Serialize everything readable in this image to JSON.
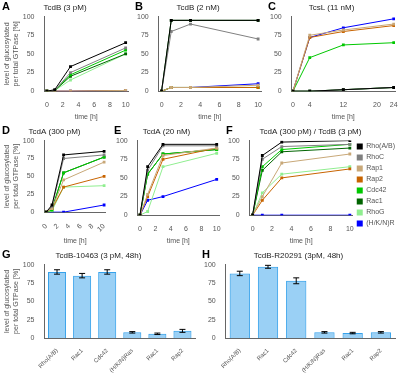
{
  "chart_data": [
    {
      "type": "line",
      "title": "TcdB (3 pM)",
      "annotations": [
        "A"
      ],
      "xlabel": "time [h]",
      "ylabel": "level of glucosylated\nper total GTPase [%]",
      "x": [
        0,
        1,
        3,
        10
      ],
      "xlim": [
        -0.3,
        10.3
      ],
      "xticks": [
        0,
        2,
        4,
        6,
        8,
        10
      ],
      "ylim": [
        0,
        100
      ],
      "yticks": [
        0,
        25,
        50,
        75,
        100
      ],
      "grid": false,
      "marker": "square",
      "series": [
        {
          "name": "Rho(A/B)",
          "color": "#000000",
          "values": [
            0,
            2,
            33,
            65
          ]
        },
        {
          "name": "RhoC",
          "color": "#808080",
          "values": [
            0,
            1,
            25,
            58
          ]
        },
        {
          "name": "Rap1",
          "color": "#c8a878",
          "values": [
            0,
            0,
            0,
            1
          ]
        },
        {
          "name": "Rap2",
          "color": "#c86400",
          "values": [
            0,
            0,
            0,
            1
          ]
        },
        {
          "name": "Cdc42",
          "color": "#00c800",
          "values": [
            0,
            1,
            22,
            55
          ]
        },
        {
          "name": "Rac1",
          "color": "#006400",
          "values": [
            0,
            1,
            20,
            50
          ]
        },
        {
          "name": "RhoG",
          "color": "#90ee90",
          "values": [
            0,
            1,
            15,
            50
          ]
        },
        {
          "name": "(H/K/N)Ras",
          "color": "#0000ff",
          "values": [
            0,
            0,
            0,
            1
          ]
        }
      ]
    },
    {
      "type": "line",
      "title": "TcdB (2 nM)",
      "annotations": [
        "B"
      ],
      "xlabel": "time [h]",
      "x": [
        0,
        1,
        3,
        10
      ],
      "xlim": [
        -0.3,
        10.3
      ],
      "xticks": [
        0,
        2,
        4,
        6,
        8,
        10
      ],
      "ylim": [
        0,
        100
      ],
      "yticks": [
        0,
        25,
        50,
        75,
        100
      ],
      "grid": false,
      "marker": "square",
      "series": [
        {
          "name": "Rho(A/B)",
          "color": "#000000",
          "values": [
            0,
            95,
            95,
            95
          ]
        },
        {
          "name": "RhoC",
          "color": "#808080",
          "values": [
            0,
            80,
            90,
            70
          ]
        },
        {
          "name": "Rap1",
          "color": "#c8a878",
          "values": [
            0,
            5,
            5,
            8
          ]
        },
        {
          "name": "Rap2",
          "color": "#c86400",
          "values": [
            0,
            5,
            5,
            5
          ]
        },
        {
          "name": "Cdc42",
          "color": "#00c800",
          "values": [
            0,
            5,
            5,
            5
          ]
        },
        {
          "name": "Rac1",
          "color": "#006400",
          "values": [
            0,
            95,
            95,
            95
          ]
        },
        {
          "name": "RhoG",
          "color": "#90ee90",
          "values": [
            0,
            5,
            5,
            5
          ]
        },
        {
          "name": "(H/K/N)Ras",
          "color": "#0000ff",
          "values": [
            0,
            5,
            5,
            10
          ]
        }
      ]
    },
    {
      "type": "line",
      "title": "TcsL (11 nM)",
      "annotations": [
        "C"
      ],
      "xlabel": "time [h]",
      "x": [
        0,
        4,
        12,
        24
      ],
      "xlim": [
        -0.3,
        24.3
      ],
      "xticks": [
        0,
        4,
        12,
        20,
        24
      ],
      "ylim": [
        0,
        100
      ],
      "yticks": [
        0,
        25,
        50,
        75,
        100
      ],
      "grid": false,
      "marker": "square",
      "series": [
        {
          "name": "Rho(A/B)",
          "color": "#000000",
          "values": [
            0,
            0,
            2,
            5
          ]
        },
        {
          "name": "RhoC",
          "color": "#808080",
          "values": [
            0,
            0,
            2,
            5
          ]
        },
        {
          "name": "Rap1",
          "color": "#c8a878",
          "values": [
            0,
            75,
            82,
            90
          ]
        },
        {
          "name": "Rap2",
          "color": "#c86400",
          "values": [
            0,
            72,
            80,
            88
          ]
        },
        {
          "name": "Cdc42",
          "color": "#00c800",
          "values": [
            0,
            45,
            62,
            65
          ]
        },
        {
          "name": "Rac1",
          "color": "#006400",
          "values": [
            0,
            0,
            2,
            5
          ]
        },
        {
          "name": "RhoG",
          "color": "#90ee90",
          "values": [
            0,
            0,
            2,
            5
          ]
        },
        {
          "name": "(H/K/N)Ras",
          "color": "#0000ff",
          "values": [
            0,
            72,
            85,
            97
          ]
        }
      ]
    },
    {
      "type": "line",
      "title": "TcdA (300 pM)",
      "annotations": [
        "D"
      ],
      "xlabel": "time [h]",
      "ylabel": "level of glucosylated\nper total GTPase [%]",
      "x": [
        0,
        1,
        3,
        10
      ],
      "xlim": [
        -0.3,
        10.3
      ],
      "xticks": [
        0,
        2,
        4,
        6,
        8,
        10
      ],
      "ylim": [
        0,
        100
      ],
      "yticks": [
        0,
        25,
        50,
        75,
        100
      ],
      "grid": false,
      "marker": "square",
      "series": [
        {
          "name": "Rho(A/B)",
          "color": "#000000",
          "values": [
            0,
            10,
            80,
            85
          ]
        },
        {
          "name": "RhoC",
          "color": "#808080",
          "values": [
            0,
            8,
            75,
            80
          ]
        },
        {
          "name": "Rap1",
          "color": "#c8a878",
          "values": [
            0,
            5,
            45,
            70
          ]
        },
        {
          "name": "Rap2",
          "color": "#c86400",
          "values": [
            0,
            5,
            35,
            50
          ]
        },
        {
          "name": "Cdc42",
          "color": "#00c800",
          "values": [
            0,
            3,
            55,
            77
          ]
        },
        {
          "name": "Rac1",
          "color": "#006400",
          "values": [
            0,
            5,
            55,
            77
          ]
        },
        {
          "name": "RhoG",
          "color": "#90ee90",
          "values": [
            0,
            2,
            35,
            37
          ]
        },
        {
          "name": "(H/K/N)Ras",
          "color": "#0000ff",
          "values": [
            0,
            0,
            0,
            10
          ]
        }
      ]
    },
    {
      "type": "line",
      "title": "TcdA (20 nM)",
      "annotations": [
        "E"
      ],
      "xlabel": "time [h]",
      "x": [
        0,
        1,
        3,
        10
      ],
      "xlim": [
        -0.3,
        10.3
      ],
      "xticks": [
        0,
        2,
        4,
        6,
        8,
        10
      ],
      "ylim": [
        0,
        100
      ],
      "yticks": [
        0,
        25,
        50,
        75,
        100
      ],
      "grid": false,
      "marker": "square",
      "series": [
        {
          "name": "Rho(A/B)",
          "color": "#000000",
          "values": [
            0,
            65,
            95,
            95
          ]
        },
        {
          "name": "RhoC",
          "color": "#808080",
          "values": [
            0,
            60,
            93,
            93
          ]
        },
        {
          "name": "Rap1",
          "color": "#c8a878",
          "values": [
            0,
            28,
            80,
            90
          ]
        },
        {
          "name": "Rap2",
          "color": "#c86400",
          "values": [
            0,
            25,
            75,
            90
          ]
        },
        {
          "name": "Cdc42",
          "color": "#00c800",
          "values": [
            0,
            55,
            82,
            88
          ]
        },
        {
          "name": "Rac1",
          "color": "#006400",
          "values": [
            0,
            55,
            82,
            88
          ]
        },
        {
          "name": "RhoG",
          "color": "#90ee90",
          "values": [
            0,
            5,
            65,
            83
          ]
        },
        {
          "name": "(H/K/N)Ras",
          "color": "#0000ff",
          "values": [
            0,
            20,
            25,
            48
          ]
        }
      ]
    },
    {
      "type": "line",
      "title": "TcdA (300 pM) / TcdB (3 pM)",
      "annotations": [
        "F"
      ],
      "xlabel": "time [h]",
      "legend": "right",
      "x": [
        0,
        1,
        3,
        10
      ],
      "xlim": [
        -0.3,
        10.3
      ],
      "xticks": [
        0,
        2,
        4,
        6,
        8,
        10
      ],
      "ylim": [
        0,
        100
      ],
      "yticks": [
        0,
        25,
        50,
        75,
        100
      ],
      "grid": false,
      "marker": "square",
      "series": [
        {
          "name": "Rho(A/B)",
          "color": "#000000",
          "values": [
            0,
            80,
            98,
            100
          ]
        },
        {
          "name": "RhoC",
          "color": "#808080",
          "values": [
            0,
            75,
            92,
            95
          ]
        },
        {
          "name": "Rap1",
          "color": "#c8a878",
          "values": [
            0,
            25,
            70,
            82
          ]
        },
        {
          "name": "Rap2",
          "color": "#c86400",
          "values": [
            0,
            20,
            50,
            62
          ]
        },
        {
          "name": "Cdc42",
          "color": "#00c800",
          "values": [
            0,
            65,
            88,
            95
          ]
        },
        {
          "name": "Rac1",
          "color": "#006400",
          "values": [
            0,
            60,
            85,
            90
          ]
        },
        {
          "name": "RhoG",
          "color": "#90ee90",
          "values": [
            0,
            30,
            55,
            65
          ]
        },
        {
          "name": "(H/K/N)Ras",
          "color": "#0000ff",
          "values": [
            0,
            0,
            0,
            0
          ]
        }
      ]
    },
    {
      "type": "bar",
      "title": "TcdB-10463 (3 pM, 48h)",
      "annotations": [
        "G"
      ],
      "ylabel": "level of glucosylated\nper total GTPase [%]",
      "categories": [
        "Rho(A/B)",
        "Rac1",
        "Cdc42",
        "(H/K/N)Ras",
        "Rac1",
        "Rap2"
      ],
      "values": [
        90,
        85,
        90,
        8,
        6,
        10
      ],
      "errors": [
        3,
        3,
        3,
        1,
        1,
        2
      ],
      "ylim": [
        0,
        100
      ],
      "yticks": [
        0,
        25,
        50,
        75,
        100
      ],
      "grid": false
    },
    {
      "type": "bar",
      "title": "TcdB-R20291 (3pM, 48h)",
      "annotations": [
        "H"
      ],
      "categories": [
        "Rho(A/B)",
        "Rac1",
        "Cdc42",
        "(H/K/N)Ras",
        "Rac1",
        "Rap2"
      ],
      "values": [
        88,
        97,
        78,
        8,
        7,
        8
      ],
      "errors": [
        3,
        2,
        4,
        1,
        1,
        1
      ],
      "ylim": [
        0,
        100
      ],
      "yticks": [
        0,
        25,
        50,
        75,
        100
      ],
      "grid": false
    }
  ]
}
